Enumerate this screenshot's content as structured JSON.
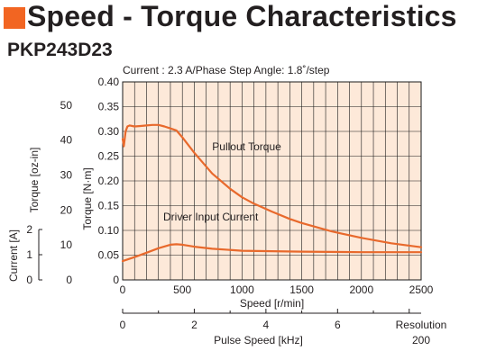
{
  "header": {
    "title": "Speed - Torque Characteristics",
    "model": "PKP243D23",
    "accent_color": "#f26522"
  },
  "chart_data": {
    "type": "line",
    "conditions": "Current : 2.3 A/Phase       Step Angle: 1.8˚/step",
    "xlabel": "Speed [r/min]",
    "xlim": [
      0,
      2500
    ],
    "x_ticks": [
      "0",
      "500",
      "1000",
      "1500",
      "2000",
      "2500"
    ],
    "ylabel_nm": "Torque [N·m]",
    "ylim_nm": [
      0,
      0.4
    ],
    "y_ticks_nm": [
      "0",
      "0.05",
      "0.10",
      "0.15",
      "0.20",
      "0.25",
      "0.30",
      "0.35",
      "0.40"
    ],
    "ylabel_ozin": "Torque [oz-in]",
    "y_ticks_ozin": [
      "0",
      "10",
      "20",
      "30",
      "40",
      "50"
    ],
    "ylabel_current": "Current [A]",
    "y_ticks_current": [
      "0",
      "1",
      "2"
    ],
    "pulse_axis_label": "Pulse Speed [kHz]",
    "pulse_ticks": [
      "0",
      "2",
      "4",
      "6"
    ],
    "resolution_label": "Resolution",
    "resolution_value": "200",
    "grid": true,
    "series": [
      {
        "name": "Pullout Torque",
        "color": "#e8692c",
        "x": [
          0,
          10,
          25,
          40,
          60,
          100,
          150,
          200,
          250,
          300,
          350,
          400,
          450,
          500,
          600,
          750,
          900,
          1000,
          1100,
          1250,
          1400,
          1500,
          1750,
          2000,
          2250,
          2500
        ],
        "y": [
          0.285,
          0.27,
          0.3,
          0.31,
          0.312,
          0.31,
          0.311,
          0.312,
          0.313,
          0.313,
          0.31,
          0.306,
          0.302,
          0.288,
          0.257,
          0.215,
          0.184,
          0.167,
          0.154,
          0.138,
          0.123,
          0.115,
          0.098,
          0.085,
          0.074,
          0.066
        ]
      },
      {
        "name": "Driver Input Current",
        "color": "#e8692c",
        "x": [
          0,
          100,
          200,
          300,
          400,
          450,
          500,
          600,
          750,
          1000,
          1500,
          2000,
          2500
        ],
        "y": [
          0.038,
          0.046,
          0.055,
          0.064,
          0.071,
          0.072,
          0.071,
          0.067,
          0.063,
          0.059,
          0.057,
          0.056,
          0.056
        ]
      }
    ],
    "annotations": [
      {
        "text": "Pullout Torque",
        "x": 750,
        "y": 0.262
      },
      {
        "text": "Driver Input Current",
        "x": 340,
        "y": 0.12
      }
    ]
  }
}
